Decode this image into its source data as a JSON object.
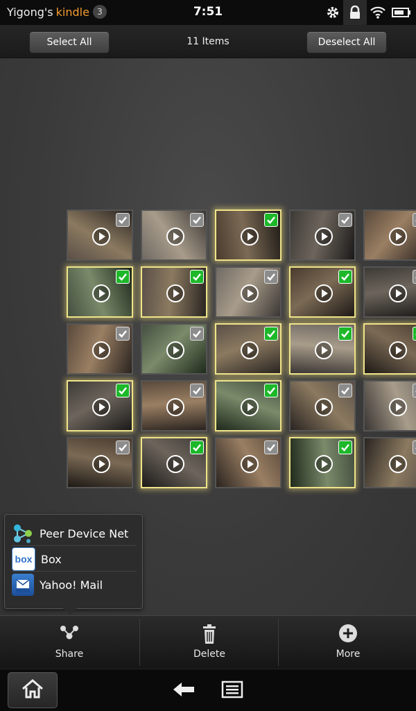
{
  "status_bar": {
    "owner_name": "Yigong's",
    "brand": "kindle",
    "notification_count": "3",
    "time": "7:51",
    "icons": [
      "gear-icon",
      "lock-icon",
      "wifi-icon",
      "battery-icon"
    ]
  },
  "action_bar": {
    "select_all_label": "Select All",
    "item_count": "11 Items",
    "deselect_all_label": "Deselect All"
  },
  "grid": {
    "rows": [
      [
        false,
        false,
        true,
        false,
        false
      ],
      [
        true,
        true,
        false,
        true,
        false
      ],
      [
        false,
        false,
        true,
        true,
        true
      ],
      [
        true,
        false,
        true,
        false,
        false
      ],
      [
        false,
        true,
        false,
        true,
        false
      ]
    ]
  },
  "share_menu": {
    "items": [
      {
        "label": "Peer Device Net",
        "icon": "peer-device-net-icon"
      },
      {
        "label": "Box",
        "icon": "box-icon"
      },
      {
        "label": "Yahoo! Mail",
        "icon": "yahoo-mail-icon"
      }
    ]
  },
  "toolbar": {
    "share_label": "Share",
    "delete_label": "Delete",
    "more_label": "More"
  },
  "nav_bar": {
    "icons": [
      "home-icon",
      "back-arrow-icon",
      "menu-icon"
    ]
  },
  "colors": {
    "accent": "#f39a2e",
    "selected_border": "#efe48a",
    "check_green": "#1db82a"
  }
}
